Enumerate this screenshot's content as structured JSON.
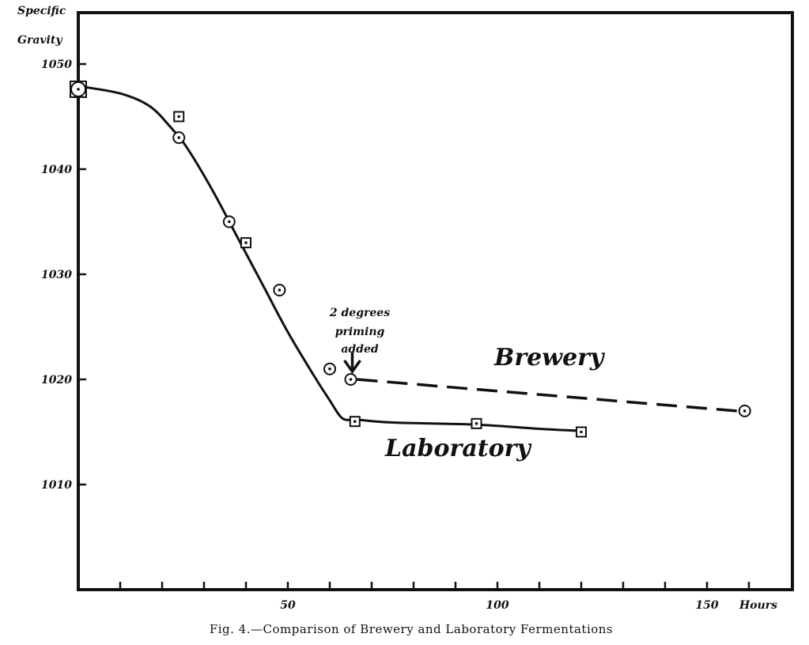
{
  "chart_data": {
    "type": "line",
    "title": "",
    "caption": "Fig. 4.—Comparison of Brewery and Laboratory Fermentations",
    "ylabel_line1": "Specific",
    "ylabel_line2": "Gravity",
    "xunit": "Hours",
    "xlim": [
      0,
      170
    ],
    "ylim": [
      1000,
      1051
    ],
    "xticks": [
      50,
      100,
      150
    ],
    "xtick_labels": [
      "50",
      "100",
      "150"
    ],
    "yticks": [
      1010,
      1020,
      1030,
      1040,
      1050
    ],
    "ytick_labels": [
      "1010",
      "1020",
      "1030",
      "1040",
      "1050"
    ],
    "grid": false,
    "legend": "none",
    "annotation": {
      "lines": [
        "2 degrees",
        "priming",
        "added"
      ],
      "x": 65,
      "y": 1020
    },
    "series": [
      {
        "name": "Brewery",
        "marker": "circle",
        "style": "solid-then-dashed",
        "points": [
          [
            0,
            1047.6
          ],
          [
            24,
            1043
          ],
          [
            36,
            1035
          ],
          [
            48,
            1028.5
          ],
          [
            60,
            1021
          ],
          [
            65,
            1020
          ],
          [
            159,
            1017
          ]
        ],
        "curve": [
          [
            0,
            1047.9
          ],
          [
            10,
            1047.2
          ],
          [
            17,
            1046
          ],
          [
            22,
            1044
          ],
          [
            26,
            1042
          ],
          [
            32,
            1038
          ],
          [
            38,
            1033.5
          ],
          [
            44,
            1029
          ],
          [
            50,
            1024.5
          ],
          [
            56,
            1020.5
          ],
          [
            60,
            1018
          ],
          [
            63,
            1016.3
          ],
          [
            66,
            1016.2
          ]
        ],
        "dashed": [
          [
            65,
            1020
          ],
          [
            159,
            1017
          ]
        ]
      },
      {
        "name": "Laboratory",
        "marker": "square",
        "style": "solid",
        "points": [
          [
            0,
            1047.6
          ],
          [
            24,
            1045
          ],
          [
            40,
            1033
          ],
          [
            66,
            1016
          ],
          [
            95,
            1015.8
          ],
          [
            120,
            1015
          ]
        ],
        "curve": [
          [
            66,
            1016.2
          ],
          [
            75,
            1015.9
          ],
          [
            95,
            1015.7
          ],
          [
            110,
            1015.3
          ],
          [
            120,
            1015.1
          ]
        ]
      }
    ],
    "colors": {
      "ink": "#111111",
      "background": "#ffffff"
    }
  }
}
